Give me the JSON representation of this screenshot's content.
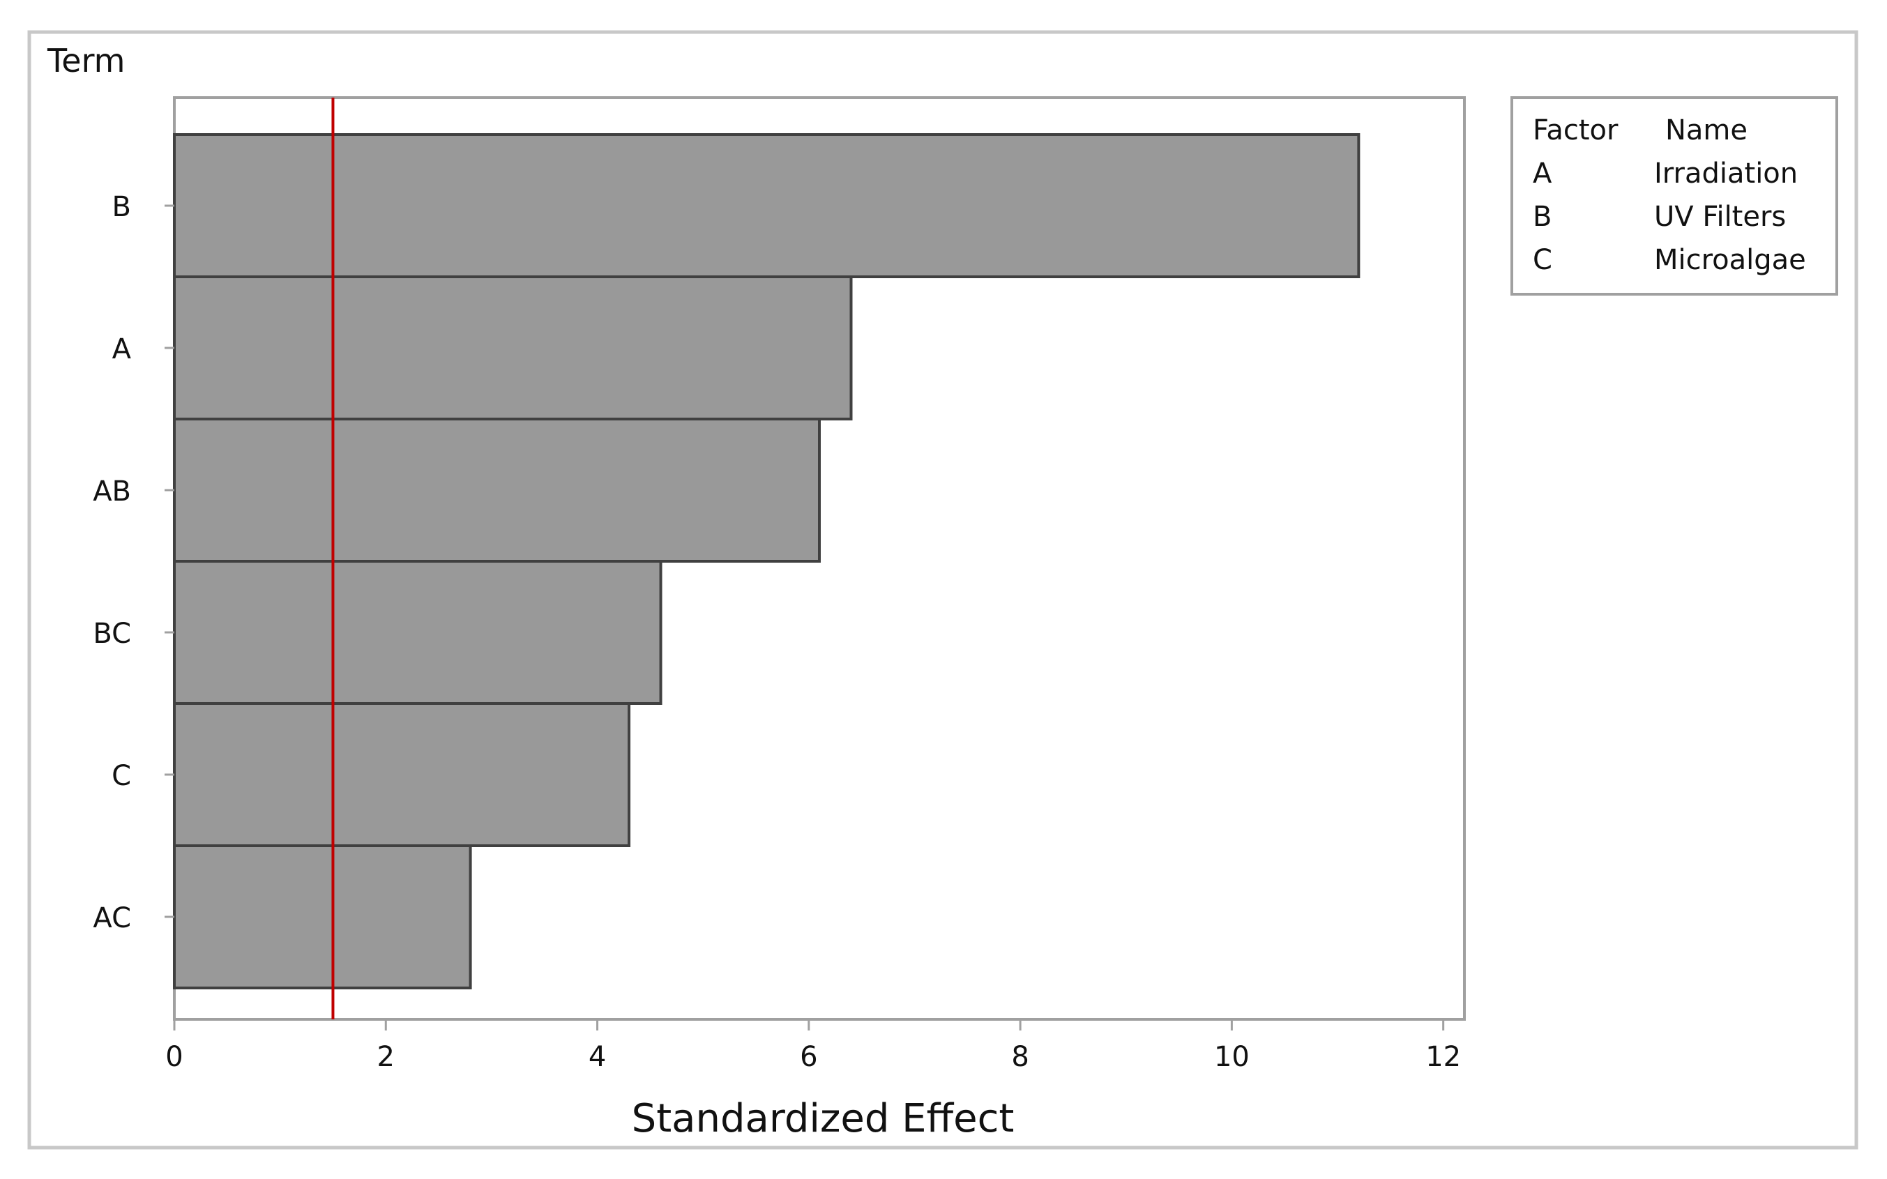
{
  "colors": {
    "bar_fill": "#999999",
    "bar_stroke": "#404040",
    "frame": "#c8c8c8",
    "plot_border": "#a0a0a0",
    "reference_line": "#c00000",
    "text": "#111111"
  },
  "chart_data": {
    "type": "bar",
    "orientation": "horizontal",
    "title": "",
    "xlabel": "Standardized Effect",
    "ylabel": "Term",
    "categories": [
      "B",
      "A",
      "AB",
      "BC",
      "C",
      "AC"
    ],
    "values": [
      11.2,
      6.4,
      6.1,
      4.6,
      4.3,
      2.8
    ],
    "xlim": [
      0,
      12.2
    ],
    "xticks": [
      0,
      2,
      4,
      6,
      8,
      10,
      12
    ],
    "reference_line": 1.5,
    "grid": false,
    "legend": {
      "placement": "right",
      "header": [
        "Factor",
        "Name"
      ],
      "rows": [
        {
          "factor": "A",
          "name": "Irradiation"
        },
        {
          "factor": "B",
          "name": "UV Filters"
        },
        {
          "factor": "C",
          "name": "Microalgae"
        }
      ]
    }
  }
}
